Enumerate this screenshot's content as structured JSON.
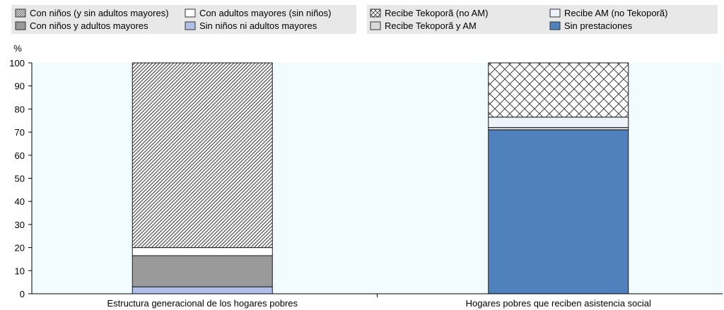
{
  "chart_data": {
    "type": "bar",
    "stacked": true,
    "ylabel": "%",
    "ylim": [
      0,
      100
    ],
    "yticks": [
      0,
      10,
      20,
      30,
      40,
      50,
      60,
      70,
      80,
      90,
      100
    ],
    "grid": false,
    "legend_placement": "top",
    "categories": [
      "Estructura generacional de los hogares pobres",
      "Hogares pobres que reciben asistencia social"
    ],
    "groups": [
      {
        "category": "Estructura generacional de los hogares pobres",
        "series": [
          {
            "name": "Sin niños ni adultos mayores",
            "value": 3,
            "fill": "light-blue",
            "color": "#b0c0e8"
          },
          {
            "name": "Con niños y adultos mayores",
            "value": 13.5,
            "fill": "solid-gray",
            "color": "#9a9a9a"
          },
          {
            "name": "Con adultos mayores (sin niños)",
            "value": 3.5,
            "fill": "white",
            "color": "#ffffff"
          },
          {
            "name": "Con niños (y sin adultos mayores)",
            "value": 80,
            "fill": "diagonal-hatch",
            "color": "#555555"
          }
        ]
      },
      {
        "category": "Hogares pobres que reciben asistencia social",
        "series": [
          {
            "name": "Sin prestaciones",
            "value": 71,
            "fill": "blue",
            "color": "#4f81bd"
          },
          {
            "name": "Recibe Tekoporã y AM",
            "value": 1,
            "fill": "light-gray",
            "color": "#d9d9d9"
          },
          {
            "name": "Recibe AM (no Tekoporã)",
            "value": 4.5,
            "fill": "very-light-blue",
            "color": "#eef2fb"
          },
          {
            "name": "Recibe Tekoporã (no AM)",
            "value": 23.5,
            "fill": "crosshatch",
            "color": "#444444"
          }
        ]
      }
    ],
    "legends": [
      [
        {
          "name": "Con niños (y sin adultos mayores)",
          "fill": "diagonal-hatch"
        },
        {
          "name": "Con adultos mayores (sin niños)",
          "fill": "white"
        },
        {
          "name": "Con niños y adultos mayores",
          "fill": "solid-gray"
        },
        {
          "name": "Sin niños ni adultos mayores",
          "fill": "light-blue"
        }
      ],
      [
        {
          "name": "Recibe Tekoporã (no AM)",
          "fill": "crosshatch"
        },
        {
          "name": "Recibe AM (no Tekoporã)",
          "fill": "very-light-blue"
        },
        {
          "name": "Recibe Tekoporã y AM",
          "fill": "light-gray"
        },
        {
          "name": "Sin prestaciones",
          "fill": "blue"
        }
      ]
    ],
    "colors": {
      "plot_background": "#f2fbff",
      "legend_background": "#e8e8e8",
      "bar_outline": "#1a1a1a"
    }
  }
}
